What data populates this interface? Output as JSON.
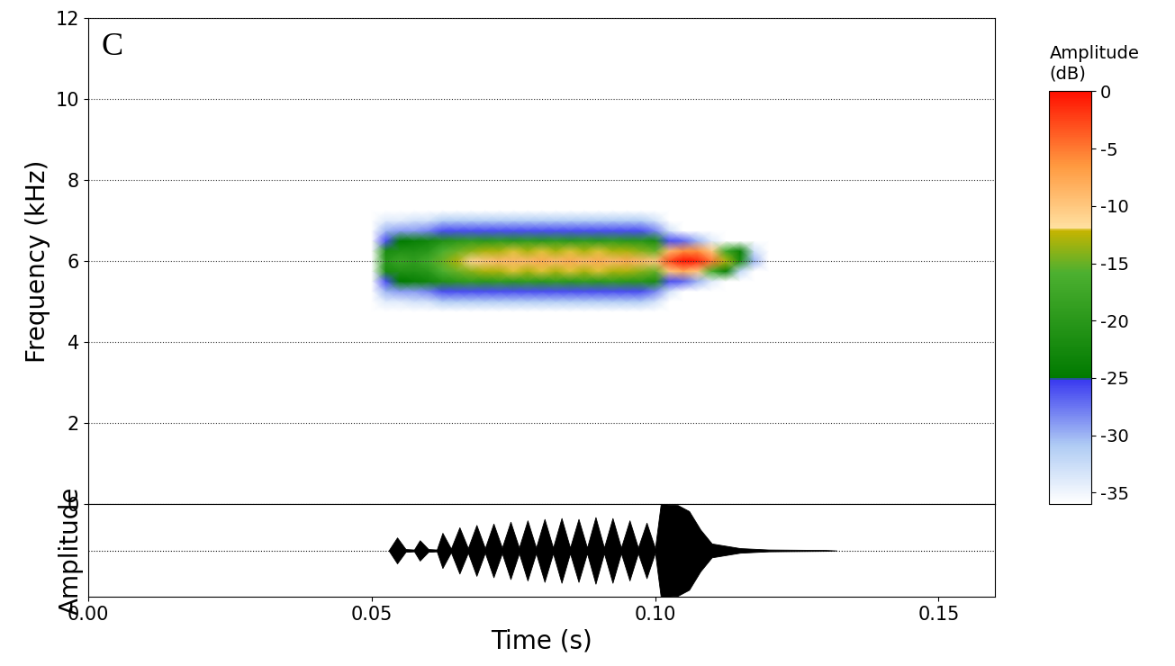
{
  "chart_data": [
    {
      "type": "heatmap",
      "annotation": "C",
      "ylabel": "Frequency (kHz)",
      "xlim": [
        0,
        0.16
      ],
      "ylim": [
        0,
        12
      ],
      "yticks": [
        0,
        2,
        4,
        6,
        8,
        10,
        12
      ],
      "grid": true,
      "tick_labels": "y",
      "times": [
        0.05,
        0.0525,
        0.055,
        0.0575,
        0.06,
        0.0625,
        0.065,
        0.0675,
        0.07,
        0.0725,
        0.075,
        0.0775,
        0.08,
        0.0825,
        0.085,
        0.0875,
        0.09,
        0.0925,
        0.095,
        0.0975,
        0.1,
        0.1025,
        0.105,
        0.1075,
        0.11,
        0.1125,
        0.115,
        0.1175,
        0.12
      ],
      "frequencies": [
        4.75,
        5.0,
        5.25,
        5.5,
        5.75,
        6.0,
        6.25,
        6.5,
        6.75,
        7.0,
        7.25
      ],
      "cells": [
        [
          -36,
          -36,
          -36,
          -36,
          -36,
          -36,
          -36,
          -36,
          -36,
          -36,
          -36,
          -36,
          -36,
          -36,
          -36,
          -36,
          -36,
          -36,
          -36,
          -36,
          -36,
          -36,
          -36,
          -36,
          -36,
          -36,
          -36,
          -36,
          -36
        ],
        [
          -36,
          -34,
          -34,
          -33,
          -33,
          -31,
          -31,
          -31,
          -31,
          -31,
          -31,
          -31,
          -31,
          -31,
          -31,
          -31,
          -31,
          -31,
          -31,
          -31,
          -33,
          -36,
          -36,
          -36,
          -36,
          -36,
          -36,
          -36,
          -36
        ],
        [
          -36,
          -30,
          -29,
          -29,
          -28,
          -26,
          -26,
          -26,
          -26,
          -26,
          -26,
          -26,
          -26,
          -26,
          -26,
          -26,
          -26,
          -26,
          -26,
          -26,
          -28,
          -33,
          -36,
          -36,
          -36,
          -36,
          -36,
          -36,
          -36
        ],
        [
          -36,
          -26,
          -25,
          -24,
          -23,
          -21,
          -20,
          -19,
          -20,
          -19,
          -20,
          -19,
          -20,
          -19,
          -20,
          -19,
          -20,
          -19,
          -20,
          -20,
          -22,
          -26,
          -27,
          -30,
          -34,
          -36,
          -36,
          -36,
          -36
        ],
        [
          -36,
          -22,
          -21,
          -21,
          -20,
          -16,
          -15,
          -14,
          -13,
          -13,
          -12,
          -13,
          -12,
          -13,
          -12,
          -13,
          -12,
          -13,
          -13,
          -14,
          -15,
          -10,
          -8,
          -10,
          -16,
          -24,
          -32,
          -36,
          -36
        ],
        [
          -36,
          -20,
          -18,
          -19,
          -17,
          -15,
          -13,
          -11,
          -10,
          -9,
          -9,
          -9,
          -8,
          -9,
          -8,
          -9,
          -8,
          -9,
          -8,
          -9,
          -10,
          -3,
          0,
          -1,
          -5,
          -13,
          -22,
          -30,
          -36
        ],
        [
          -36,
          -22,
          -21,
          -21,
          -20,
          -16,
          -15,
          -14,
          -13,
          -13,
          -12,
          -13,
          -12,
          -13,
          -12,
          -13,
          -12,
          -13,
          -13,
          -14,
          -15,
          -9,
          -6,
          -6,
          -10,
          -17,
          -24,
          -33,
          -36
        ],
        [
          -36,
          -26,
          -25,
          -24,
          -23,
          -21,
          -20,
          -19,
          -20,
          -19,
          -20,
          -19,
          -20,
          -19,
          -20,
          -19,
          -20,
          -19,
          -20,
          -20,
          -22,
          -26,
          -27,
          -30,
          -34,
          -36,
          -36,
          -36,
          -36
        ],
        [
          -36,
          -30,
          -29,
          -29,
          -28,
          -26,
          -26,
          -26,
          -26,
          -26,
          -26,
          -26,
          -26,
          -26,
          -26,
          -26,
          -26,
          -26,
          -26,
          -26,
          -28,
          -33,
          -36,
          -36,
          -36,
          -36,
          -36,
          -36,
          -36
        ],
        [
          -36,
          -34,
          -34,
          -33,
          -33,
          -31,
          -31,
          -31,
          -31,
          -31,
          -31,
          -31,
          -31,
          -31,
          -31,
          -31,
          -31,
          -31,
          -31,
          -31,
          -33,
          -36,
          -36,
          -36,
          -36,
          -36,
          -36,
          -36,
          -36
        ],
        [
          -36,
          -36,
          -36,
          -36,
          -36,
          -36,
          -36,
          -36,
          -36,
          -36,
          -36,
          -36,
          -36,
          -36,
          -36,
          -36,
          -36,
          -36,
          -36,
          -36,
          -36,
          -36,
          -36,
          -36,
          -36,
          -36,
          -36,
          -36,
          -36
        ]
      ],
      "colorbar": {
        "label": "Amplitude\n(dB)",
        "range": [
          -36,
          0
        ],
        "ticks": [
          0,
          -5,
          -10,
          -15,
          -20,
          -25,
          -30,
          -35
        ]
      }
    },
    {
      "type": "area",
      "xlabel": "Time (s)",
      "ylabel": "Amplitude",
      "xlim": [
        0,
        0.16
      ],
      "xticks": [
        {
          "value": 0,
          "label": "0.00"
        },
        {
          "value": 0.05,
          "label": "0.05"
        },
        {
          "value": 0.1,
          "label": "0.10"
        },
        {
          "value": 0.15,
          "label": "0.15"
        }
      ],
      "ylim": [
        -1,
        1
      ],
      "yticks": [],
      "tick_labels": "x",
      "baseline": 0,
      "color": "#000000",
      "x": [
        0.053,
        0.0545,
        0.056,
        0.0575,
        0.0585,
        0.06,
        0.0615,
        0.0625,
        0.064,
        0.0655,
        0.067,
        0.0685,
        0.07,
        0.0715,
        0.073,
        0.0745,
        0.076,
        0.0775,
        0.079,
        0.0805,
        0.082,
        0.0835,
        0.085,
        0.0865,
        0.088,
        0.0895,
        0.091,
        0.0925,
        0.094,
        0.0955,
        0.097,
        0.0985,
        0.1,
        0.101,
        0.104,
        0.106,
        0.108,
        0.11,
        0.115,
        0.12,
        0.13,
        0.132
      ],
      "values": [
        0,
        0.28,
        0.03,
        0.02,
        0.22,
        0.03,
        0.02,
        0.38,
        0.04,
        0.5,
        0.05,
        0.55,
        0.05,
        0.58,
        0.06,
        0.62,
        0.06,
        0.65,
        0.06,
        0.68,
        0.06,
        0.7,
        0.06,
        0.68,
        0.06,
        0.72,
        0.06,
        0.7,
        0.06,
        0.65,
        0.06,
        0.6,
        0.05,
        1.0,
        0.98,
        0.85,
        0.45,
        0.15,
        0.05,
        0.02,
        0.01,
        0
      ]
    }
  ]
}
